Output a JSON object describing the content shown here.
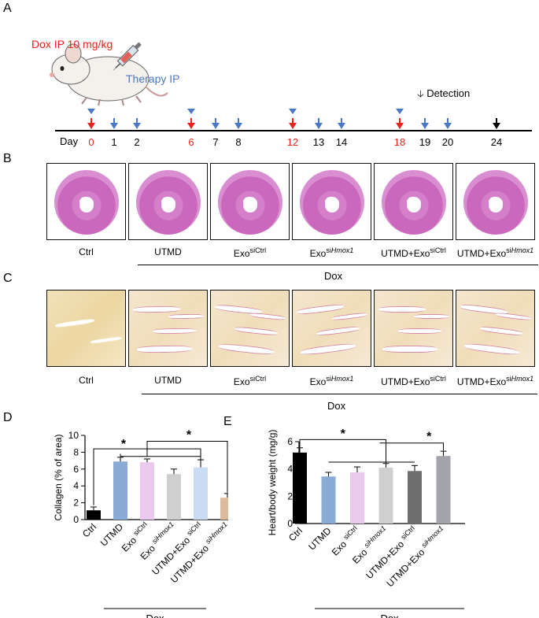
{
  "panel_a": {
    "letter": "A",
    "dox_label": "Dox IP 10 mg/kg",
    "therapy_label": "Therapy IP",
    "detection_label": "Detection",
    "day_label": "Day",
    "day_ticks": [
      {
        "day": "0",
        "color": "red"
      },
      {
        "day": "1",
        "color": "black"
      },
      {
        "day": "2",
        "color": "black"
      },
      {
        "day": "6",
        "color": "red"
      },
      {
        "day": "7",
        "color": "black"
      },
      {
        "day": "8",
        "color": "black"
      },
      {
        "day": "12",
        "color": "red"
      },
      {
        "day": "13",
        "color": "black"
      },
      {
        "day": "14",
        "color": "black"
      },
      {
        "day": "18",
        "color": "red"
      },
      {
        "day": "19",
        "color": "black"
      },
      {
        "day": "20",
        "color": "black"
      },
      {
        "day": "24",
        "color": "black"
      }
    ],
    "colors": {
      "dox": "#e8231c",
      "therapy": "#4a78c4",
      "detection": "#000000"
    }
  },
  "panel_b": {
    "letter": "B",
    "labels": [
      "Ctrl",
      "UTMD",
      "Exo",
      "Exo",
      "UTMD+Exo",
      "UTMD+Exo"
    ],
    "sups": [
      "",
      "",
      "siCtrl",
      "siHmox1",
      "siCtrl",
      "siHmox1"
    ],
    "group_label": "Dox"
  },
  "panel_c": {
    "letter": "C",
    "labels": [
      "Ctrl",
      "UTMD",
      "Exo",
      "Exo",
      "UTMD+Exo",
      "UTMD+Exo"
    ],
    "sups": [
      "",
      "",
      "siCtrl",
      "siHmox1",
      "siCtrl",
      "siHmox1"
    ],
    "group_label": "Dox"
  },
  "chart_data": [
    {
      "panel": "D",
      "type": "bar",
      "ylabel": "Collagen (% of area)",
      "ylim": [
        0,
        10
      ],
      "yticks": [
        "0",
        "2",
        "4",
        "6",
        "8",
        "10"
      ],
      "categories": [
        "Ctrl",
        "UTMD",
        "Exo siCtrl",
        "Exo siHmox1",
        "UTMD+Exo siCtrl",
        "UTMD+Exo siHmox1"
      ],
      "category_parts": [
        {
          "main": "Ctrl",
          "sup": ""
        },
        {
          "main": "UTMD",
          "sup": ""
        },
        {
          "main": "Exo ",
          "sup": "siCtrl"
        },
        {
          "main": "Exo ",
          "sup": "siHmox1"
        },
        {
          "main": "UTMD+Exo ",
          "sup": "siCtrl"
        },
        {
          "main": "UTMD+Exo ",
          "sup": "siHmox1"
        }
      ],
      "values": [
        1.1,
        6.9,
        6.8,
        5.4,
        6.2,
        2.6
      ],
      "errors": [
        0.4,
        0.5,
        0.4,
        0.6,
        0.9,
        0.5
      ],
      "colors": [
        "#000000",
        "#8aabd6",
        "#ebc9ef",
        "#cfcfcf",
        "#c9dcf3",
        "#dcbb9d"
      ],
      "significance": [
        "*",
        "*"
      ],
      "group_label": "Dox"
    },
    {
      "panel": "E",
      "type": "bar",
      "ylabel": "Heart/body weight (mg/g)",
      "ylim": [
        0,
        6
      ],
      "yticks": [
        "0",
        "2",
        "4",
        "6"
      ],
      "categories": [
        "Ctrl",
        "UTMD",
        "Exo siCtrl",
        "Exo siHmox1",
        "UTMD+Exo siCtrl",
        "UTMD+Exo siHmox1"
      ],
      "category_parts": [
        {
          "main": "Ctrl",
          "sup": ""
        },
        {
          "main": "UTMD",
          "sup": ""
        },
        {
          "main": "Exo ",
          "sup": "siCtrl"
        },
        {
          "main": "Exo ",
          "sup": "siHmox1"
        },
        {
          "main": "UTMD+Exo ",
          "sup": "siCtrl"
        },
        {
          "main": "UTMD+Exo ",
          "sup": "siHmox1"
        }
      ],
      "values": [
        5.2,
        3.45,
        3.75,
        4.1,
        3.85,
        4.95
      ],
      "errors": [
        0.35,
        0.3,
        0.4,
        0.3,
        0.4,
        0.35
      ],
      "colors": [
        "#000000",
        "#8aabd6",
        "#ebc9ef",
        "#cfcfcf",
        "#6e6e6e",
        "#a3a3ab"
      ],
      "significance": [
        "*",
        "*"
      ],
      "group_label": "Dox"
    }
  ]
}
